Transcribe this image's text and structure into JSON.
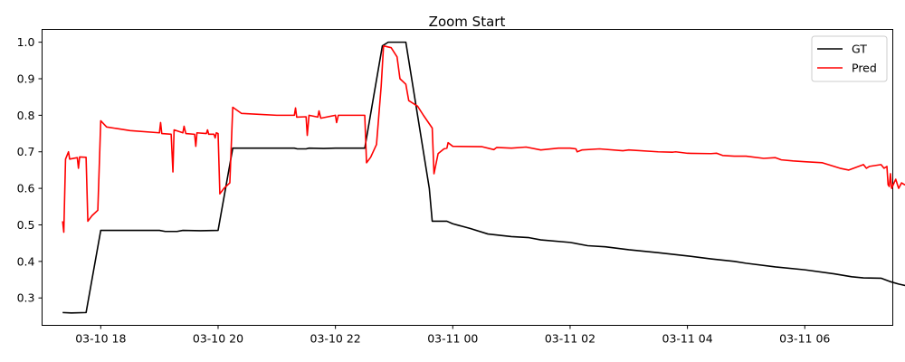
{
  "chart_data": {
    "type": "line",
    "title": "Zoom Start",
    "xlabel": "",
    "ylabel": "",
    "x_tick_labels": [
      "03-10 18",
      "03-10 20",
      "03-10 22",
      "03-11 00",
      "03-11 02",
      "03-11 04",
      "03-11 06"
    ],
    "x_tick_hours": [
      18,
      20,
      22,
      24,
      26,
      28,
      30
    ],
    "xlim": [
      17.0,
      31.5
    ],
    "y_tick_labels": [
      "0.3",
      "0.4",
      "0.5",
      "0.6",
      "0.7",
      "0.8",
      "0.9",
      "1.0"
    ],
    "ylim": [
      0.225,
      1.035
    ],
    "grid": false,
    "legend_position": "top-right",
    "series": [
      {
        "name": "GT",
        "color": "#000000",
        "points": [
          [
            17.35,
            0.26
          ],
          [
            17.5,
            0.259
          ],
          [
            17.75,
            0.26
          ],
          [
            18.0,
            0.485
          ],
          [
            19.0,
            0.485
          ],
          [
            19.1,
            0.482
          ],
          [
            19.3,
            0.482
          ],
          [
            19.4,
            0.485
          ],
          [
            19.7,
            0.484
          ],
          [
            20.0,
            0.485
          ],
          [
            20.25,
            0.71
          ],
          [
            21.0,
            0.71
          ],
          [
            21.3,
            0.71
          ],
          [
            21.35,
            0.708
          ],
          [
            21.5,
            0.708
          ],
          [
            21.55,
            0.71
          ],
          [
            21.8,
            0.709
          ],
          [
            22.0,
            0.71
          ],
          [
            22.5,
            0.71
          ],
          [
            22.8,
            0.99
          ],
          [
            22.9,
            1.0
          ],
          [
            23.2,
            1.0
          ],
          [
            23.6,
            0.6
          ],
          [
            23.65,
            0.51
          ],
          [
            23.9,
            0.51
          ],
          [
            24.0,
            0.503
          ],
          [
            24.3,
            0.49
          ],
          [
            24.6,
            0.475
          ],
          [
            25.0,
            0.468
          ],
          [
            25.3,
            0.465
          ],
          [
            25.5,
            0.459
          ],
          [
            26.0,
            0.452
          ],
          [
            26.3,
            0.443
          ],
          [
            26.6,
            0.44
          ],
          [
            27.0,
            0.432
          ],
          [
            27.5,
            0.424
          ],
          [
            28.0,
            0.415
          ],
          [
            28.4,
            0.407
          ],
          [
            28.8,
            0.4
          ],
          [
            29.0,
            0.395
          ],
          [
            29.5,
            0.385
          ],
          [
            30.0,
            0.377
          ],
          [
            30.5,
            0.366
          ],
          [
            30.8,
            0.358
          ],
          [
            31.0,
            0.355
          ],
          [
            31.3,
            0.354
          ],
          [
            31.45,
            0.345
          ],
          [
            31.6,
            0.338
          ],
          [
            31.8,
            0.331
          ]
        ]
      },
      {
        "name": "Pred",
        "color": "#ff0000",
        "points": [
          [
            17.35,
            0.51
          ],
          [
            17.37,
            0.48
          ],
          [
            17.4,
            0.68
          ],
          [
            17.45,
            0.7
          ],
          [
            17.47,
            0.68
          ],
          [
            17.6,
            0.684
          ],
          [
            17.62,
            0.655
          ],
          [
            17.64,
            0.686
          ],
          [
            17.75,
            0.685
          ],
          [
            17.78,
            0.51
          ],
          [
            17.85,
            0.525
          ],
          [
            17.95,
            0.54
          ],
          [
            18.0,
            0.785
          ],
          [
            18.1,
            0.768
          ],
          [
            18.5,
            0.758
          ],
          [
            19.0,
            0.752
          ],
          [
            19.02,
            0.78
          ],
          [
            19.04,
            0.75
          ],
          [
            19.2,
            0.748
          ],
          [
            19.23,
            0.645
          ],
          [
            19.25,
            0.76
          ],
          [
            19.4,
            0.752
          ],
          [
            19.42,
            0.77
          ],
          [
            19.45,
            0.75
          ],
          [
            19.6,
            0.748
          ],
          [
            19.62,
            0.715
          ],
          [
            19.64,
            0.752
          ],
          [
            19.8,
            0.75
          ],
          [
            19.82,
            0.76
          ],
          [
            19.84,
            0.748
          ],
          [
            19.93,
            0.748
          ],
          [
            19.95,
            0.738
          ],
          [
            19.97,
            0.752
          ],
          [
            20.0,
            0.75
          ],
          [
            20.03,
            0.585
          ],
          [
            20.1,
            0.6
          ],
          [
            20.2,
            0.615
          ],
          [
            20.25,
            0.822
          ],
          [
            20.4,
            0.805
          ],
          [
            21.0,
            0.8
          ],
          [
            21.3,
            0.8
          ],
          [
            21.32,
            0.82
          ],
          [
            21.34,
            0.795
          ],
          [
            21.5,
            0.796
          ],
          [
            21.52,
            0.745
          ],
          [
            21.55,
            0.8
          ],
          [
            21.7,
            0.795
          ],
          [
            21.72,
            0.812
          ],
          [
            21.75,
            0.792
          ],
          [
            22.0,
            0.8
          ],
          [
            22.02,
            0.78
          ],
          [
            22.05,
            0.8
          ],
          [
            22.5,
            0.8
          ],
          [
            22.53,
            0.67
          ],
          [
            22.6,
            0.685
          ],
          [
            22.7,
            0.72
          ],
          [
            22.78,
            0.88
          ],
          [
            22.82,
            0.99
          ],
          [
            22.95,
            0.985
          ],
          [
            23.05,
            0.96
          ],
          [
            23.1,
            0.9
          ],
          [
            23.2,
            0.885
          ],
          [
            23.25,
            0.84
          ],
          [
            23.4,
            0.825
          ],
          [
            23.5,
            0.8
          ],
          [
            23.65,
            0.765
          ],
          [
            23.68,
            0.64
          ],
          [
            23.75,
            0.695
          ],
          [
            23.85,
            0.708
          ],
          [
            23.9,
            0.71
          ],
          [
            23.92,
            0.725
          ],
          [
            24.0,
            0.715
          ],
          [
            24.5,
            0.714
          ],
          [
            24.7,
            0.706
          ],
          [
            24.75,
            0.712
          ],
          [
            25.0,
            0.71
          ],
          [
            25.25,
            0.713
          ],
          [
            25.5,
            0.705
          ],
          [
            25.8,
            0.71
          ],
          [
            26.0,
            0.71
          ],
          [
            26.1,
            0.708
          ],
          [
            26.12,
            0.7
          ],
          [
            26.2,
            0.705
          ],
          [
            26.5,
            0.708
          ],
          [
            26.9,
            0.703
          ],
          [
            27.0,
            0.705
          ],
          [
            27.5,
            0.7
          ],
          [
            27.75,
            0.699
          ],
          [
            27.8,
            0.7
          ],
          [
            28.0,
            0.696
          ],
          [
            28.4,
            0.695
          ],
          [
            28.5,
            0.696
          ],
          [
            28.6,
            0.69
          ],
          [
            28.8,
            0.688
          ],
          [
            29.0,
            0.688
          ],
          [
            29.3,
            0.682
          ],
          [
            29.5,
            0.684
          ],
          [
            29.6,
            0.678
          ],
          [
            29.8,
            0.675
          ],
          [
            30.0,
            0.673
          ],
          [
            30.3,
            0.67
          ],
          [
            30.6,
            0.655
          ],
          [
            30.75,
            0.65
          ],
          [
            31.0,
            0.665
          ],
          [
            31.05,
            0.655
          ],
          [
            31.1,
            0.66
          ],
          [
            31.3,
            0.665
          ],
          [
            31.35,
            0.655
          ],
          [
            31.4,
            0.66
          ],
          [
            31.42,
            0.61
          ],
          [
            31.44,
            0.605
          ],
          [
            31.46,
            0.64
          ],
          [
            31.48,
            0.6
          ],
          [
            31.55,
            0.625
          ],
          [
            31.6,
            0.6
          ],
          [
            31.65,
            0.615
          ],
          [
            31.7,
            0.61
          ],
          [
            31.8,
            0.608
          ]
        ]
      }
    ]
  }
}
